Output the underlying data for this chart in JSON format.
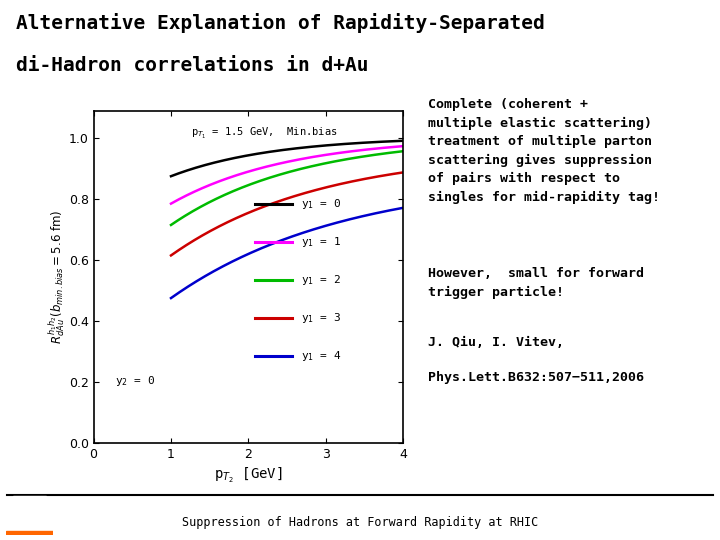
{
  "title_line1": "Alternative Explanation of Rapidity-Separated",
  "title_line2": "di-Hadron correlations in d+Au",
  "title_bg_color": "#7de8f0",
  "slide_bg_color": "#ffffff",
  "plot_annotation_pt": "p",
  "plot_annotation": "p$_{T_1}$ = 1.5 GeV,  Min.bias",
  "ylabel": "$R_{dAu}^{h_1 h_2}(b_{min.bias} = 5.6$ fm$)$",
  "xlabel": "p$_{T_2}$ [GeV]",
  "y2_label": "y$_2$ = 0",
  "xlim": [
    0,
    4
  ],
  "ylim": [
    0,
    1.09
  ],
  "xticks": [
    0,
    1,
    2,
    3,
    4
  ],
  "yticks": [
    0,
    0.2,
    0.4,
    0.6,
    0.8,
    1
  ],
  "curves": [
    {
      "color": "#000000",
      "label": "y$_1$ = 0",
      "start": 0.875,
      "end": 1.005,
      "rate": 0.75
    },
    {
      "color": "#ff00ff",
      "label": "y$_1$ = 1",
      "start": 0.785,
      "end": 1.005,
      "rate": 0.65
    },
    {
      "color": "#00bb00",
      "label": "y$_1$ = 2",
      "start": 0.715,
      "end": 1.005,
      "rate": 0.6
    },
    {
      "color": "#cc0000",
      "label": "y$_1$ = 3",
      "start": 0.615,
      "end": 0.96,
      "rate": 0.52
    },
    {
      "color": "#0000cc",
      "label": "y$_1$ = 4",
      "start": 0.475,
      "end": 0.875,
      "rate": 0.45
    }
  ],
  "text_block1": "Complete (coherent +\nmultiple elastic scattering)\ntreatment of multiple parton\nscattering gives suppression\nof pairs with respect to\nsingles for mid-rapidity tag!",
  "text_block2": "However,  small for forward\ntrigger particle!",
  "text_block3": "J. Qiu, I. Vitev,",
  "text_block4": "Phys.Lett.B632:507−511,2006",
  "footer_text": "Suppression of Hadrons at Forward Rapidity at RHIC"
}
